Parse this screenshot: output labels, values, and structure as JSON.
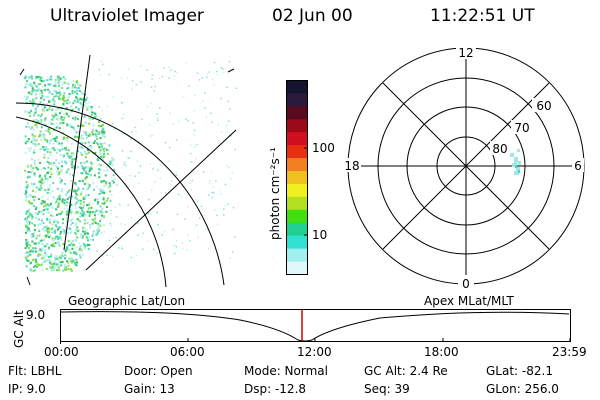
{
  "header": {
    "title": "Ultraviolet Imager",
    "date": "02 Jun 00",
    "time": "11:22:51 UT"
  },
  "colorbar": {
    "unit_label": "photon cm⁻²s⁻¹",
    "tick_labels": [
      "100",
      "10"
    ],
    "colors": [
      "#151530",
      "#2a1a3a",
      "#5a0a20",
      "#9a0a18",
      "#d01020",
      "#e83010",
      "#f08020",
      "#f0c020",
      "#f0f020",
      "#b0e020",
      "#40e010",
      "#20d090",
      "#30e0d0",
      "#a0f0f0",
      "#e0f8f8"
    ]
  },
  "polar_plot": {
    "mlt_labels": {
      "top": "12",
      "bottom": "0",
      "left": "18",
      "right": "6"
    },
    "lat_labels": [
      "60",
      "70",
      "80"
    ]
  },
  "altitude_panel": {
    "y_label": "GC Alt",
    "y_value": "9.0",
    "left_caption": "Geographic Lat/Lon",
    "right_caption": "Apex MLat/MLT",
    "x_ticks": [
      "00:00",
      "06:00",
      "12:00",
      "18:00",
      "23:59"
    ],
    "marker_color": "#cc0000"
  },
  "footer": {
    "filter": "Flt: LBHL",
    "ip": "IP:  9.0",
    "door": "Door: Open",
    "gain": "Gain: 13",
    "mode": "Mode: Normal",
    "dsp": "Dsp:   -12.8",
    "gc_alt": "GC Alt: 2.4 Re",
    "seq": "Seq: 39",
    "glat": "GLat: -82.1",
    "glon": "GLon: 256.0"
  }
}
